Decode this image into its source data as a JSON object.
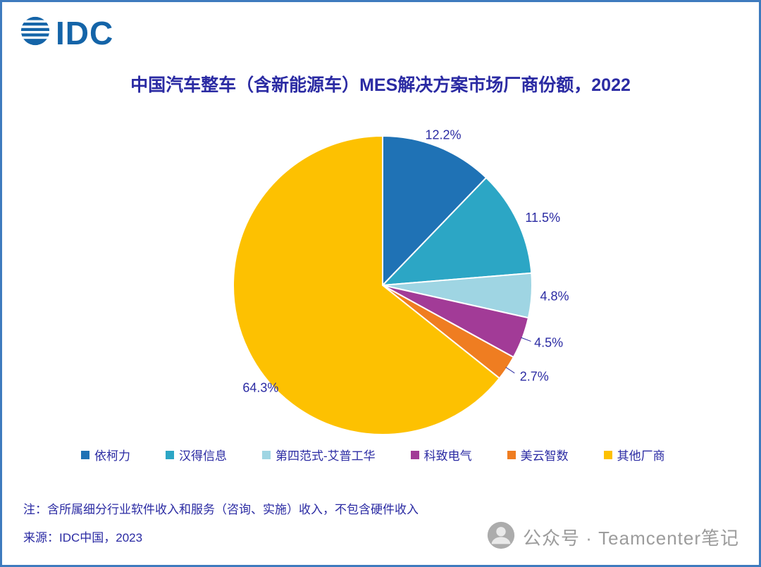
{
  "page": {
    "logo_text": "IDC",
    "title": "中国汽车整车（含新能源车）MES解决方案市场厂商份额，2022",
    "colors": {
      "border": "#3E7BBE",
      "accent_text": "#2B2BA3",
      "logo_blue": "#1464A8",
      "watermark_gray": "#9C9C9C"
    }
  },
  "chart_data": {
    "type": "pie",
    "title": "中国汽车整车（含新能源车）MES解决方案市场厂商份额，2022",
    "categories": [
      "依柯力",
      "汉得信息",
      "第四范式-艾普工华",
      "科致电气",
      "美云智数",
      "其他厂商"
    ],
    "values": [
      12.2,
      11.5,
      4.8,
      4.5,
      2.7,
      64.3
    ],
    "labels": [
      "12.2%",
      "11.5%",
      "4.8%",
      "4.5%",
      "2.7%",
      "64.3%"
    ],
    "colors": [
      "#1F72B5",
      "#2CA6C5",
      "#9FD5E3",
      "#A23B97",
      "#EF7D21",
      "#FDC101"
    ],
    "legend_position": "bottom",
    "start_angle": 0,
    "direction": "clockwise",
    "unit": "%"
  },
  "notes": {
    "note1": "注：含所属细分行业软件收入和服务（咨询、实施）收入，不包含硬件收入",
    "note2": "来源：IDC中国，2023"
  },
  "watermark": {
    "text": "公众号 · Teamcenter笔记"
  }
}
